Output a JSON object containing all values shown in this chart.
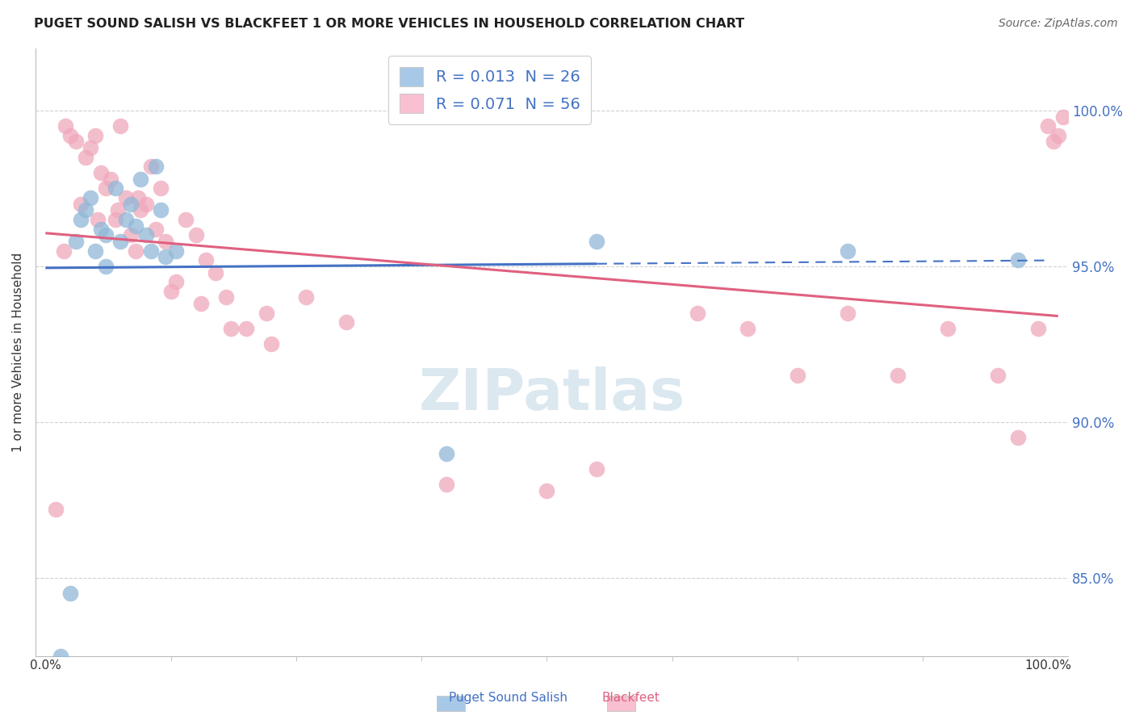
{
  "title": "PUGET SOUND SALISH VS BLACKFEET 1 OR MORE VEHICLES IN HOUSEHOLD CORRELATION CHART",
  "source": "Source: ZipAtlas.com",
  "ylabel": "1 or more Vehicles in Household",
  "blue_color": "#90b8d8",
  "pink_color": "#f0a8bc",
  "blue_line_color": "#4472c4",
  "pink_line_color": "#e06080",
  "blue_legend_color": "#a8c8e8",
  "pink_legend_color": "#f8c0d0",
  "watermark_color": "#dce8f0",
  "ytick_color": "#4472c4",
  "ytick_vals": [
    85.0,
    90.0,
    95.0,
    100.0
  ],
  "ytick_labels": [
    "85.0%",
    "90.0%",
    "95.0%",
    "100.0%"
  ],
  "ylim": [
    82.5,
    102.0
  ],
  "xlim": [
    -1.0,
    102.0
  ],
  "blue_R": 0.013,
  "blue_N": 26,
  "pink_R": 0.071,
  "pink_N": 56,
  "blue_scatter_x": [
    1.5,
    2.5,
    3.0,
    3.5,
    4.0,
    4.5,
    5.0,
    5.5,
    6.0,
    6.0,
    7.0,
    7.5,
    8.0,
    8.5,
    9.0,
    9.5,
    10.0,
    10.5,
    11.0,
    11.5,
    12.0,
    13.0,
    40.0,
    55.0,
    80.0,
    97.0
  ],
  "blue_scatter_y": [
    82.5,
    84.5,
    95.8,
    96.5,
    96.8,
    97.2,
    95.5,
    96.2,
    95.0,
    96.0,
    97.5,
    95.8,
    96.5,
    97.0,
    96.3,
    97.8,
    96.0,
    95.5,
    98.2,
    96.8,
    95.3,
    95.5,
    89.0,
    95.8,
    95.5,
    95.2
  ],
  "pink_scatter_x": [
    1.0,
    2.0,
    2.5,
    3.0,
    3.5,
    4.0,
    4.5,
    5.0,
    5.5,
    6.0,
    6.5,
    7.0,
    7.5,
    8.0,
    8.5,
    9.0,
    9.5,
    10.0,
    10.5,
    11.0,
    11.5,
    12.0,
    13.0,
    14.0,
    15.0,
    16.0,
    17.0,
    18.0,
    20.0,
    22.0,
    1.8,
    5.2,
    7.2,
    9.2,
    12.5,
    15.5,
    18.5,
    22.5,
    26.0,
    30.0,
    40.0,
    50.0,
    55.0,
    65.0,
    70.0,
    75.0,
    80.0,
    85.0,
    90.0,
    95.0,
    97.0,
    99.0,
    100.0,
    100.5,
    101.0,
    101.5
  ],
  "pink_scatter_y": [
    87.2,
    99.5,
    99.2,
    99.0,
    97.0,
    98.5,
    98.8,
    99.2,
    98.0,
    97.5,
    97.8,
    96.5,
    99.5,
    97.2,
    96.0,
    95.5,
    96.8,
    97.0,
    98.2,
    96.2,
    97.5,
    95.8,
    94.5,
    96.5,
    96.0,
    95.2,
    94.8,
    94.0,
    93.0,
    93.5,
    95.5,
    96.5,
    96.8,
    97.2,
    94.2,
    93.8,
    93.0,
    92.5,
    94.0,
    93.2,
    88.0,
    87.8,
    88.5,
    93.5,
    93.0,
    91.5,
    93.5,
    91.5,
    93.0,
    91.5,
    89.5,
    93.0,
    99.5,
    99.0,
    99.2,
    99.8
  ]
}
